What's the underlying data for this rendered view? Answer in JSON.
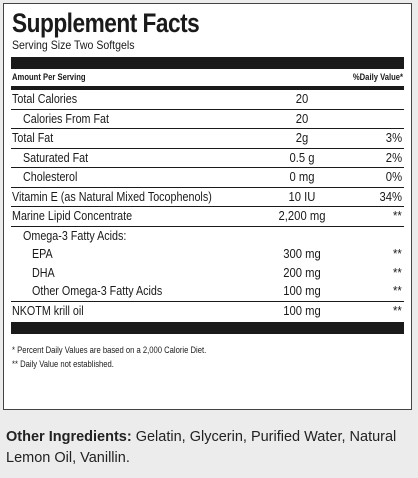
{
  "facts": {
    "title": "Supplement Facts",
    "serving_size": "Serving Size Two Softgels",
    "header_left": "Amount Per Serving",
    "header_right": "%Daily Value*",
    "rows": [
      {
        "name": "Total Calories",
        "amount": "20",
        "dv": ""
      },
      {
        "name": "Calories From Fat",
        "amount": "20",
        "dv": ""
      },
      {
        "name": "Total Fat",
        "amount": "2g",
        "dv": "3%"
      },
      {
        "name": "Saturated Fat",
        "amount": "0.5 g",
        "dv": "2%"
      },
      {
        "name": "Cholesterol",
        "amount": "0 mg",
        "dv": "0%"
      },
      {
        "name": "Vitamin E (as Natural Mixed Tocophenols)",
        "amount": "10 IU",
        "dv": "34%"
      },
      {
        "name": "Marine Lipid Concentrate",
        "amount": "2,200 mg",
        "dv": "**"
      },
      {
        "name": "Omega-3 Fatty Acids:",
        "amount": "",
        "dv": ""
      },
      {
        "name": "EPA",
        "amount": "300 mg",
        "dv": "**"
      },
      {
        "name": "DHA",
        "amount": "200 mg",
        "dv": "**"
      },
      {
        "name": "Other Omega-3 Fatty Acids",
        "amount": "100 mg",
        "dv": "**"
      },
      {
        "name": "NKOTM krill oil",
        "amount": "100 mg",
        "dv": "**"
      }
    ],
    "footnote_1": "* Percent Daily Values are based on a 2,000 Calorie Diet.",
    "footnote_2": "** Daily Value not established."
  },
  "other_ingredients": {
    "label": "Other Ingredients:",
    "text": " Gelatin, Glycerin, Purified Water, Natural Lemon Oil, Vanillin."
  }
}
